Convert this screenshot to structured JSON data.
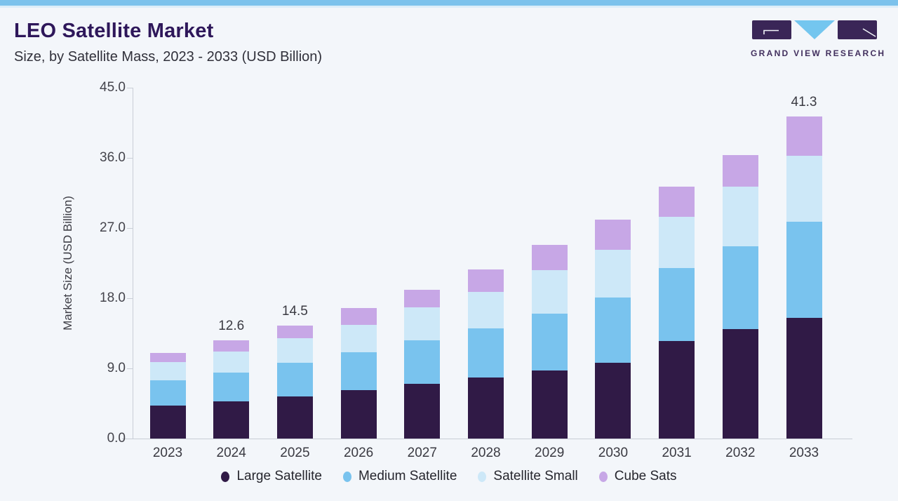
{
  "page": {
    "background": "#f3f6fa",
    "accent_bar_color": "#7cc2ec",
    "accent_bar_secondary_color": "#dcedf8"
  },
  "header": {
    "title": "LEO Satellite Market",
    "subtitle": "Size, by Satellite Mass, 2023 - 2033 (USD Billion)",
    "title_color": "#2e175a"
  },
  "logo": {
    "text": "GRAND VIEW RESEARCH",
    "text_color": "#42305e",
    "mark_dark_color": "#3a2657",
    "mark_blue_color": "#74c6ef"
  },
  "chart_data": {
    "type": "bar",
    "stacked": true,
    "title": "LEO Satellite Market",
    "subtitle": "Size, by Satellite Mass, 2023 - 2033 (USD Billion)",
    "xlabel": "",
    "ylabel": "Market Size (USD Billion)",
    "ylim": [
      0,
      45
    ],
    "yticks": [
      45,
      36,
      27,
      18,
      9,
      0
    ],
    "ytick_labels": [
      "45.0",
      "36.0",
      "27.0",
      "18.0",
      "9.0",
      "0.0"
    ],
    "grid": false,
    "legend_position": "bottom",
    "categories": [
      "2023",
      "2024",
      "2025",
      "2026",
      "2027",
      "2028",
      "2029",
      "2030",
      "2031",
      "2032",
      "2033"
    ],
    "series": [
      {
        "name": "Large Satellite",
        "color": "#301a46",
        "values": [
          4.2,
          4.8,
          5.4,
          6.2,
          7.0,
          7.8,
          8.7,
          9.7,
          12.5,
          14.0,
          15.5
        ]
      },
      {
        "name": "Medium Satellite",
        "color": "#79c3ee",
        "values": [
          3.3,
          3.7,
          4.3,
          4.9,
          5.6,
          6.3,
          7.3,
          8.4,
          9.4,
          10.7,
          12.3
        ]
      },
      {
        "name": "Satellite Small",
        "color": "#cde8f8",
        "values": [
          2.3,
          2.7,
          3.2,
          3.5,
          4.2,
          4.7,
          5.6,
          6.1,
          6.5,
          7.6,
          8.5
        ]
      },
      {
        "name": "Cube Sats",
        "color": "#c7a7e6",
        "values": [
          1.2,
          1.4,
          1.6,
          2.1,
          2.3,
          2.9,
          3.2,
          3.9,
          3.9,
          4.1,
          5.0
        ]
      }
    ],
    "totals": [
      11.0,
      12.6,
      14.5,
      16.7,
      19.1,
      21.7,
      24.8,
      28.1,
      32.3,
      36.4,
      41.3
    ],
    "data_labels": [
      "",
      "12.6",
      "14.5",
      "",
      "",
      "",
      "",
      "",
      "",
      "",
      "41.3"
    ]
  },
  "legend": {
    "items": [
      "Large Satellite",
      "Medium Satellite",
      "Satellite Small",
      "Cube Sats"
    ]
  }
}
